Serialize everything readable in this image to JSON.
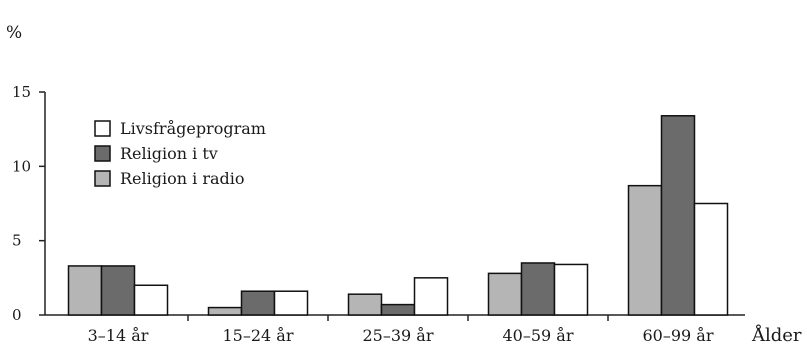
{
  "chart_data": {
    "type": "bar",
    "ylabel": "%",
    "xlabel": "Ålder",
    "ylim": [
      0,
      15
    ],
    "yticks": [
      "0",
      "5",
      "10",
      "15"
    ],
    "categories": [
      "3–14 år",
      "15–24 år",
      "25–39 år",
      "40–59 år",
      "60–99 år"
    ],
    "grid": false,
    "legend_placement": "top-left",
    "series": [
      {
        "name": "Religion i radio",
        "color": "#b5b5b5",
        "values": [
          3.3,
          0.5,
          1.4,
          2.8,
          8.7
        ]
      },
      {
        "name": "Religion i tv",
        "color": "#6b6b6b",
        "values": [
          3.3,
          1.6,
          0.7,
          3.5,
          13.4
        ]
      },
      {
        "name": "Livsfrågeprogram",
        "color": "#ffffff",
        "values": [
          2.0,
          1.6,
          2.5,
          3.4,
          7.5
        ]
      }
    ],
    "legend_order": [
      "Livsfrågeprogram",
      "Religion i tv",
      "Religion i radio"
    ]
  }
}
